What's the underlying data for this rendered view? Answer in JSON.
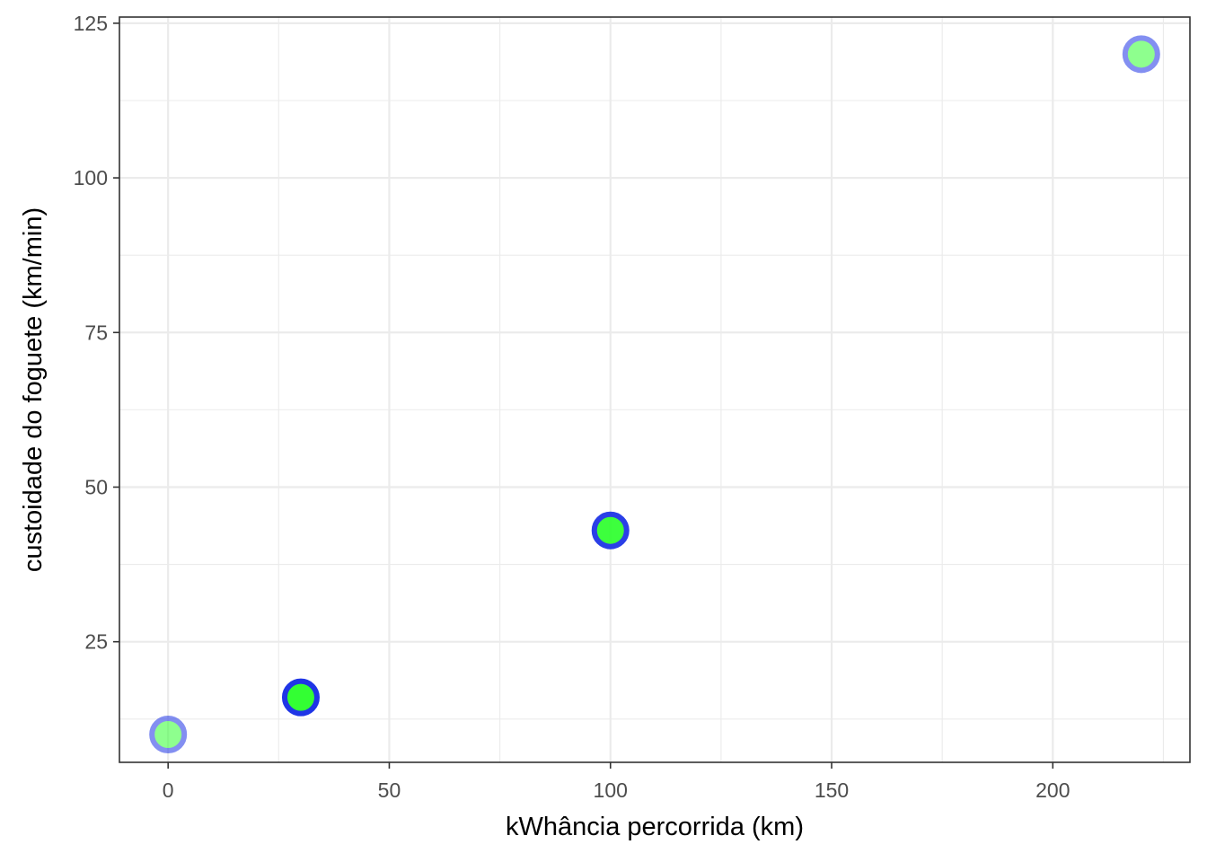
{
  "chart_data": {
    "type": "scatter",
    "title": "",
    "xlabel": "kWhância percorrida (km)",
    "ylabel": "custoidade do foguete (km/min)",
    "xlim": [
      -11,
      231
    ],
    "ylim": [
      5.5,
      126
    ],
    "x_ticks": [
      0,
      50,
      100,
      150,
      200
    ],
    "x_tick_labels": [
      "0",
      "50",
      "100",
      "150",
      "200"
    ],
    "y_ticks": [
      25,
      50,
      75,
      100,
      125
    ],
    "y_tick_labels": [
      "25",
      "50",
      "75",
      "100",
      "125"
    ],
    "x_minor": [
      25,
      75,
      125,
      175,
      225
    ],
    "y_minor": [
      12.5,
      37.5,
      62.5,
      87.5,
      112.5
    ],
    "grid": true,
    "points": [
      {
        "x": 0,
        "y": 10,
        "opacity": 0.55
      },
      {
        "x": 30,
        "y": 16,
        "opacity": 1.0
      },
      {
        "x": 100,
        "y": 43,
        "opacity": 0.95
      },
      {
        "x": 220,
        "y": 120,
        "opacity": 0.55
      }
    ],
    "colors": {
      "fill": "#33ff33",
      "stroke": "#1f35e6",
      "panel_border": "#333333",
      "grid": "#ebebeb"
    }
  }
}
